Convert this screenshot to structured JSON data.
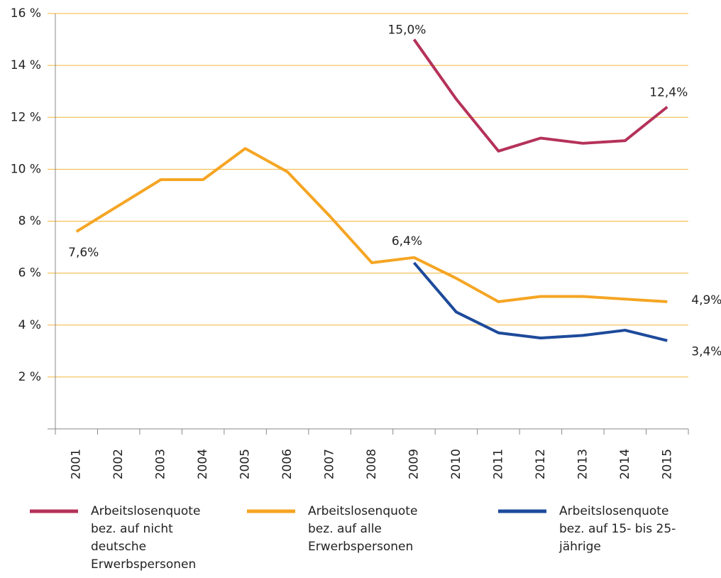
{
  "chart_data": {
    "type": "line",
    "categories": [
      "2001",
      "2002",
      "2003",
      "2004",
      "2005",
      "2006",
      "2007",
      "2008",
      "2009",
      "2010",
      "2011",
      "2012",
      "2013",
      "2014",
      "2015"
    ],
    "series": [
      {
        "name": "Arbeitslosenquote bez. auf nicht deutsche Erwerbspersonen",
        "color": "#b5325a",
        "values": [
          null,
          null,
          null,
          null,
          null,
          null,
          null,
          null,
          15.0,
          12.7,
          10.7,
          11.2,
          11.0,
          11.1,
          12.4
        ],
        "value_labels": [
          null,
          null,
          null,
          null,
          null,
          null,
          null,
          null,
          "15,0%",
          null,
          null,
          null,
          null,
          null,
          "12,4%"
        ]
      },
      {
        "name": "Arbeitslosenquote bez. auf alle Erwerbspersonen",
        "color": "#f5a523",
        "values": [
          7.6,
          8.6,
          9.6,
          9.6,
          10.8,
          9.9,
          8.2,
          6.4,
          6.6,
          5.8,
          4.9,
          5.1,
          5.1,
          5.0,
          4.9
        ],
        "value_labels": [
          "7,6%",
          null,
          null,
          null,
          null,
          null,
          null,
          null,
          null,
          null,
          null,
          null,
          null,
          null,
          "4,9%"
        ]
      },
      {
        "name": "Arbeitslosenquote bez. auf 15- bis 25-jährige",
        "color": "#1d4a9b",
        "values": [
          null,
          null,
          null,
          null,
          null,
          null,
          null,
          null,
          6.4,
          4.5,
          3.7,
          3.5,
          3.6,
          3.8,
          3.4
        ],
        "value_labels": [
          null,
          null,
          null,
          null,
          null,
          null,
          null,
          null,
          "6,4%",
          null,
          null,
          null,
          null,
          null,
          "3,4%"
        ]
      }
    ],
    "ylim": [
      0,
      16
    ],
    "yticks": [
      {
        "value": 2,
        "label": "2 %"
      },
      {
        "value": 4,
        "label": "4 %"
      },
      {
        "value": 6,
        "label": "6 %"
      },
      {
        "value": 8,
        "label": "8 %"
      },
      {
        "value": 10,
        "label": "10 %"
      },
      {
        "value": 12,
        "label": "12 %"
      },
      {
        "value": 14,
        "label": "14 %"
      },
      {
        "value": 16,
        "label": "16 %"
      }
    ],
    "grid": true,
    "grid_color": "#f2b43a"
  }
}
